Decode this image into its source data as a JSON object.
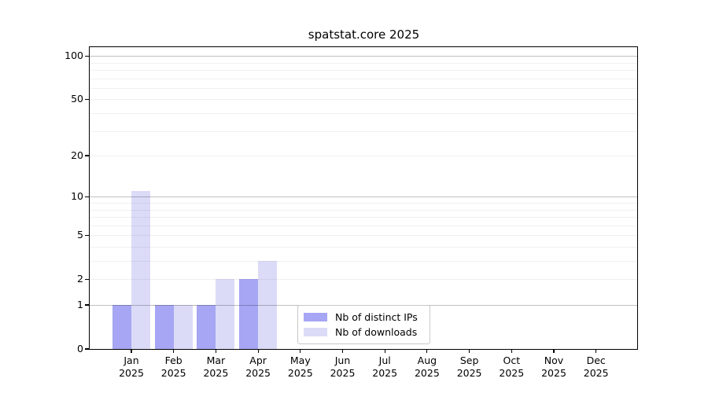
{
  "chart_data": {
    "type": "bar",
    "title": "spatstat.core 2025",
    "categories": [
      "Jan 2025",
      "Feb 2025",
      "Mar 2025",
      "Apr 2025",
      "May 2025",
      "Jun 2025",
      "Jul 2025",
      "Aug 2025",
      "Sep 2025",
      "Oct 2025",
      "Nov 2025",
      "Dec 2025"
    ],
    "series": [
      {
        "name": "Nb of distinct IPs",
        "color": "#a6a6f4",
        "values": [
          1,
          1,
          1,
          2,
          0,
          0,
          0,
          0,
          0,
          0,
          0,
          0
        ]
      },
      {
        "name": "Nb of downloads",
        "color": "#dbdbf8",
        "values": [
          11,
          1,
          2,
          3,
          0,
          0,
          0,
          0,
          0,
          0,
          0,
          0
        ]
      }
    ],
    "xlabel": "",
    "ylabel": "",
    "yscale": "log1p",
    "ylim": [
      0,
      115
    ],
    "yticks": [
      0,
      1,
      2,
      5,
      10,
      20,
      50,
      100
    ],
    "grid": {
      "major_lines": [
        1,
        10,
        100
      ],
      "minor_lines": [
        2,
        3,
        4,
        5,
        6,
        7,
        8,
        9,
        20,
        30,
        40,
        50,
        60,
        70,
        80,
        90
      ],
      "major_color": "rgba(0,0,0,0.25)",
      "minor_color": "rgba(0,0,0,0.06)"
    },
    "legend_position": "lower-center"
  }
}
